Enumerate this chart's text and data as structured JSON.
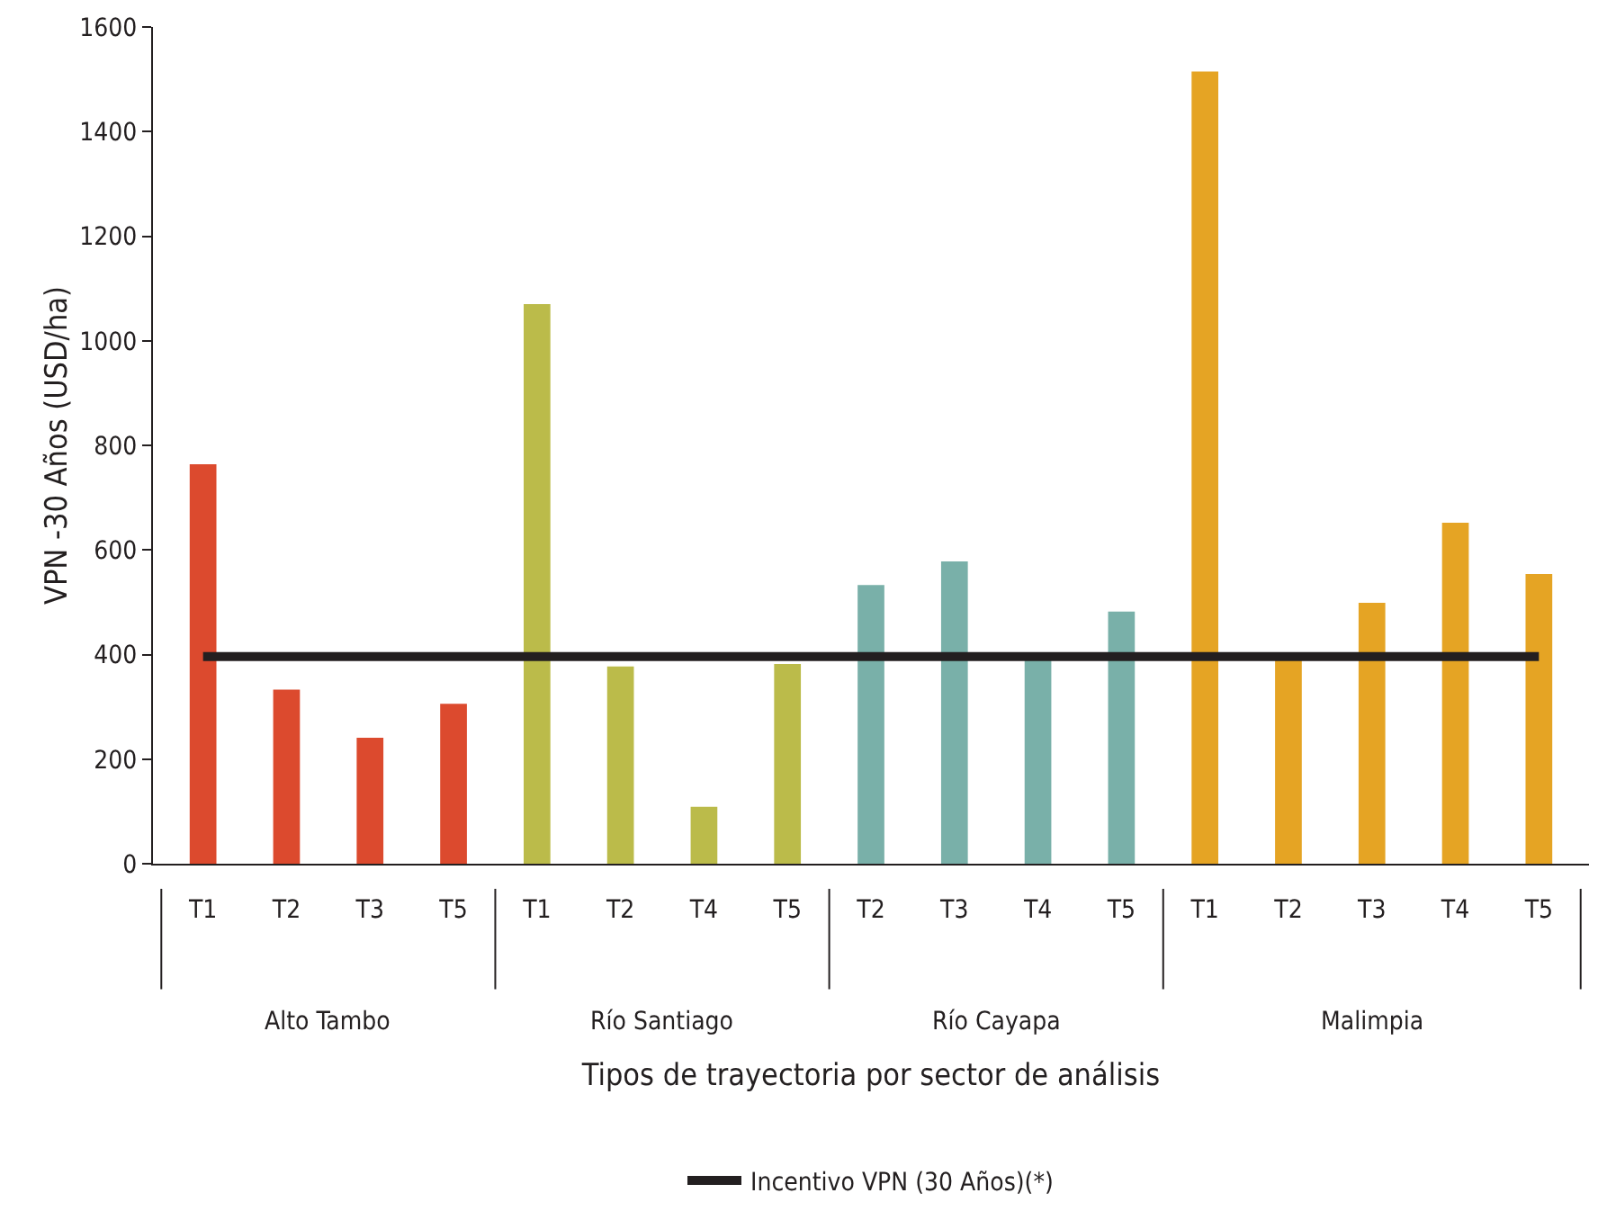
{
  "chart_data": {
    "type": "bar",
    "xlabel": "Tipos de trayectoria por sector de análisis",
    "ylabel": "VPN -30 Años (USD/ha)",
    "categories": [
      "T1",
      "T2",
      "T3",
      "T5",
      "T1",
      "T2",
      "T4",
      "T5",
      "T2",
      "T3",
      "T4",
      "T5",
      "T1",
      "T2",
      "T3",
      "T4",
      "T5"
    ],
    "series": [
      {
        "color": "#dc4a2e",
        "values": [
          764,
          333,
          241,
          306,
          null,
          null,
          null,
          null,
          null,
          null,
          null,
          null,
          null,
          null,
          null,
          null,
          null
        ]
      },
      {
        "color": "#bbbb4a",
        "values": [
          null,
          null,
          null,
          null,
          1070,
          377,
          109,
          382,
          null,
          null,
          null,
          null,
          null,
          null,
          null,
          null,
          null
        ]
      },
      {
        "color": "#79b0a9",
        "values": [
          null,
          null,
          null,
          null,
          null,
          null,
          null,
          null,
          533,
          578,
          392,
          482,
          null,
          null,
          null,
          null,
          null
        ]
      },
      {
        "color": "#e5a424",
        "values": [
          null,
          null,
          null,
          null,
          null,
          null,
          null,
          null,
          null,
          null,
          null,
          null,
          1515,
          392,
          499,
          652,
          554
        ]
      }
    ],
    "annotations": [
      "Alto Tambo",
      "Río Santiago",
      "Río Cayapa",
      "Malimpia"
    ],
    "ylim": [
      0,
      1600
    ],
    "yticks": [
      0,
      200,
      400,
      600,
      800,
      1000,
      1200,
      1400,
      1600
    ],
    "grid": false,
    "legend": "bottom",
    "ref_lines": [
      {
        "axis": "y",
        "value": 396,
        "label": "Incentivo VPN (30 Años)(*)",
        "color": "#231f20"
      }
    ]
  }
}
